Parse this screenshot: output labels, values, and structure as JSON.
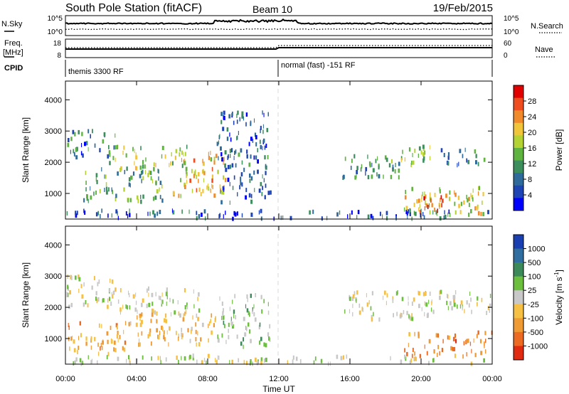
{
  "header": {
    "title": "South Pole Station (fitACF)",
    "beam": "Beam 10",
    "date": "19/Feb/2015"
  },
  "strips": {
    "nsky_label": "N.Sky",
    "nsearch_label": "N.Search",
    "freq_label_line1": "Freq.",
    "freq_label_line2": "[MHz]",
    "nave_label": "Nave",
    "cpid_label": "CPID",
    "noise_ticks_left": [
      "10^5",
      "10^0"
    ],
    "noise_ticks_right": [
      "10^5",
      "10^0"
    ],
    "freq_ticks_left": [
      "18",
      "8"
    ],
    "nave_ticks_right": [
      "60",
      "0"
    ],
    "cpid_modes": [
      {
        "name": "themis 3300 RF",
        "start_hour": 0
      },
      {
        "name": "normal (fast) -151 RF",
        "start_hour": 12
      }
    ]
  },
  "colors": {
    "power_scale": [
      "#0000ff",
      "#1f45b5",
      "#2e6b9a",
      "#3c8f5c",
      "#5fb341",
      "#b5d235",
      "#f0c53a",
      "#f08a2b",
      "#ef4d1f",
      "#e00000"
    ],
    "velocity_scale": [
      "#1a3fb0",
      "#2f6e9e",
      "#3c8a5a",
      "#6cbf3d",
      "#c8c8c8",
      "#f5c043",
      "#f09a33",
      "#ec6a22",
      "#e12b10"
    ]
  },
  "chart_data": {
    "type": "heatmap",
    "x_label": "Time UT",
    "x_range_hours": [
      0,
      24
    ],
    "x_ticks": [
      "00:00",
      "04:00",
      "08:00",
      "12:00",
      "16:00",
      "20:00",
      "00:00"
    ],
    "y_label": "Slant Range [km]",
    "y_range_km": [
      180,
      4600
    ],
    "y_ticks": [
      "1000",
      "2000",
      "3000",
      "4000"
    ],
    "y_tick_values": [
      1000,
      2000,
      3000,
      4000
    ],
    "panels": [
      {
        "name": "power",
        "colorbar_label": "Power [dB]",
        "colorbar_ticks": [
          "4",
          "8",
          "12",
          "16",
          "20",
          "24",
          "28"
        ],
        "scale_range": [
          0,
          30
        ],
        "echo_regions": [
          {
            "t0": 0.0,
            "t1": 2.8,
            "r0": 2100,
            "r1": 3000,
            "v": 8
          },
          {
            "t0": 2.4,
            "t1": 6.8,
            "r0": 1700,
            "r1": 2500,
            "v": 16
          },
          {
            "t0": 6.0,
            "t1": 9.0,
            "r0": 900,
            "r1": 2400,
            "v": 20
          },
          {
            "t0": 1.0,
            "t1": 5.5,
            "r0": 700,
            "r1": 1800,
            "v": 12
          },
          {
            "t0": 8.5,
            "t1": 11.5,
            "r0": 700,
            "r1": 3600,
            "v": 7
          },
          {
            "t0": 15.5,
            "t1": 19.0,
            "r0": 1500,
            "r1": 2200,
            "v": 10
          },
          {
            "t0": 18.0,
            "t1": 20.5,
            "r0": 1900,
            "r1": 2600,
            "v": 14
          },
          {
            "t0": 21.0,
            "t1": 24.0,
            "r0": 1900,
            "r1": 2400,
            "v": 9
          },
          {
            "t0": 19.0,
            "t1": 23.5,
            "r0": 300,
            "r1": 1200,
            "v": 18
          },
          {
            "t0": 19.8,
            "t1": 21.2,
            "r0": 400,
            "r1": 900,
            "v": 27
          },
          {
            "t0": 0.0,
            "t1": 24.0,
            "r0": 180,
            "r1": 450,
            "v": 6
          }
        ]
      },
      {
        "name": "velocity",
        "colorbar_label": "Velocity [m s^-1]",
        "colorbar_ticks": [
          "1000",
          "500",
          "100",
          "25",
          "-25",
          "-100",
          "-500",
          "-1000"
        ],
        "scale_range": [
          -1000,
          1000
        ],
        "echo_regions": [
          {
            "t0": 0.0,
            "t1": 3.0,
            "r0": 2000,
            "r1": 3000,
            "v": 0
          },
          {
            "t0": 3.0,
            "t1": 7.5,
            "r0": 1700,
            "r1": 2600,
            "v": 0
          },
          {
            "t0": 0.0,
            "t1": 3.5,
            "r0": 500,
            "r1": 1500,
            "v": -350
          },
          {
            "t0": 3.5,
            "t1": 8.5,
            "r0": 800,
            "r1": 1800,
            "v": -300
          },
          {
            "t0": 8.5,
            "t1": 11.5,
            "r0": 700,
            "r1": 2400,
            "v": 150
          },
          {
            "t0": 15.5,
            "t1": 20.5,
            "r0": 1600,
            "r1": 2500,
            "v": 0
          },
          {
            "t0": 20.0,
            "t1": 24.0,
            "r0": 1800,
            "r1": 2500,
            "v": -20
          },
          {
            "t0": 19.0,
            "t1": 24.0,
            "r0": 400,
            "r1": 1200,
            "v": -550
          },
          {
            "t0": 0.0,
            "t1": 24.0,
            "r0": 180,
            "r1": 450,
            "v": 0
          }
        ]
      }
    ]
  }
}
